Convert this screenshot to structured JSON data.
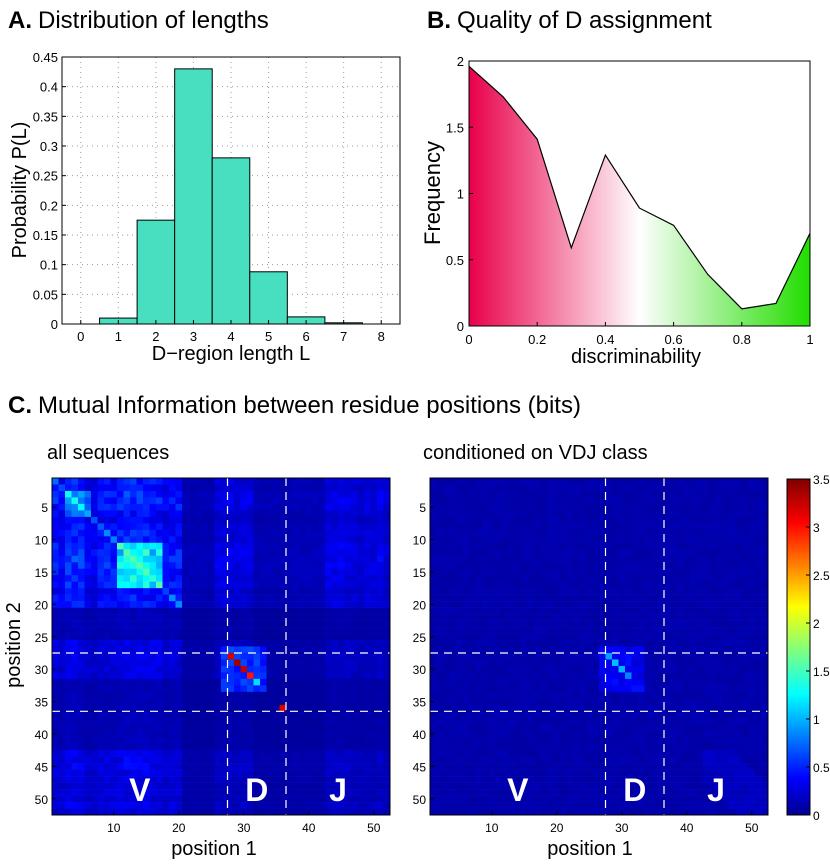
{
  "panelA": {
    "title_letter": "A.",
    "title_text": "Distribution of lengths",
    "xlabel": "D−region length L",
    "ylabel": "Probability P(L)",
    "xticks": [
      "0",
      "1",
      "2",
      "3",
      "4",
      "5",
      "6",
      "7",
      "8"
    ],
    "yticks": [
      "0",
      "0.05",
      "0.1",
      "0.15",
      "0.2",
      "0.25",
      "0.3",
      "0.35",
      "0.4",
      "0.45"
    ]
  },
  "panelB": {
    "title_letter": "B.",
    "title_text": "Quality of D assignment",
    "xlabel": "discriminability",
    "ylabel": "Frequency",
    "xticks": [
      "0",
      "0.2",
      "0.4",
      "0.6",
      "0.8",
      "1"
    ],
    "yticks": [
      "0",
      "0.5",
      "1",
      "1.5",
      "2"
    ]
  },
  "panelC": {
    "title_letter": "C.",
    "title_text": "Mutual Information between residue positions (bits)",
    "left_subtitle": "all sequences",
    "right_subtitle": "conditioned on VDJ class",
    "xlabel": "position 1",
    "ylabel": "position 2",
    "xticks": [
      "10",
      "20",
      "30",
      "40",
      "50"
    ],
    "yticks": [
      "5",
      "10",
      "15",
      "20",
      "25",
      "30",
      "35",
      "40",
      "45",
      "50"
    ],
    "region_labels": [
      "V",
      "D",
      "J"
    ],
    "colorbar_ticks": [
      "0",
      "0.5",
      "1",
      "1.5",
      "2",
      "2.5",
      "3",
      "3.5"
    ]
  },
  "colors": {
    "hist_fill": "#48dfc0",
    "line": "#000000",
    "dashed": "#ffffff"
  },
  "chart_data": [
    {
      "type": "bar",
      "title": "Distribution of lengths",
      "xlabel": "D-region length L",
      "ylabel": "Probability P(L)",
      "categories": [
        1,
        2,
        3,
        4,
        5,
        6,
        7
      ],
      "values": [
        0.01,
        0.175,
        0.43,
        0.28,
        0.088,
        0.012,
        0.002
      ],
      "xlim": [
        -0.5,
        8.5
      ],
      "ylim": [
        0,
        0.45
      ],
      "grid": true
    },
    {
      "type": "area",
      "title": "Quality of D assignment",
      "xlabel": "discriminability",
      "ylabel": "Frequency",
      "x": [
        0,
        0.1,
        0.2,
        0.3,
        0.4,
        0.5,
        0.6,
        0.7,
        0.8,
        0.9,
        1.0
      ],
      "y": [
        1.96,
        1.73,
        1.41,
        0.59,
        1.29,
        0.89,
        0.76,
        0.39,
        0.13,
        0.17,
        0.7
      ],
      "xlim": [
        0,
        1
      ],
      "ylim": [
        0,
        2
      ],
      "fill_gradient": [
        "#e8004a",
        "#ffffff",
        "#22dd00"
      ]
    },
    {
      "type": "heatmap",
      "title": "all sequences",
      "xlabel": "position 1",
      "ylabel": "position 2",
      "size": 52,
      "vmin": 0,
      "vmax": 3.5,
      "dividers": [
        27.5,
        36.5
      ],
      "hot_diagonal": [
        [
          28,
          28,
          3.2
        ],
        [
          29,
          29,
          3.4
        ],
        [
          30,
          30,
          3.3
        ],
        [
          31,
          31,
          3.0
        ],
        [
          32,
          32,
          1.2
        ],
        [
          36,
          36,
          3.2
        ]
      ]
    },
    {
      "type": "heatmap",
      "title": "conditioned on VDJ class",
      "xlabel": "position 1",
      "ylabel": "position 2",
      "size": 52,
      "vmin": 0,
      "vmax": 3.5,
      "dividers": [
        27.5,
        36.5
      ],
      "hot_diagonal": [
        [
          28,
          28,
          1.0
        ],
        [
          29,
          29,
          1.1
        ],
        [
          30,
          30,
          1.05
        ],
        [
          31,
          31,
          0.9
        ]
      ]
    }
  ]
}
